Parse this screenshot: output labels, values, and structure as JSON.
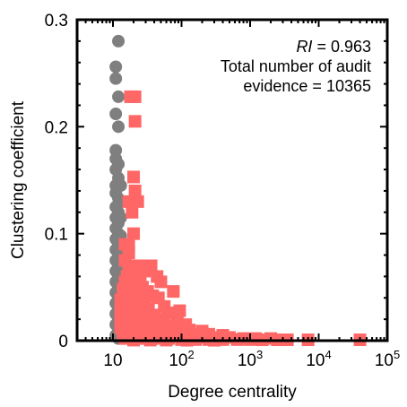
{
  "chart_data": {
    "type": "scatter",
    "title": "",
    "xlabel": "Degree centrality",
    "ylabel": "Clustering coefficient",
    "xscale": "log",
    "xlim": [
      3,
      100000
    ],
    "ylim": [
      0,
      0.3
    ],
    "xticks": [
      {
        "value": 10,
        "base": "10",
        "exp": ""
      },
      {
        "value": 100,
        "base": "10",
        "exp": "2"
      },
      {
        "value": 1000,
        "base": "10",
        "exp": "3"
      },
      {
        "value": 10000,
        "base": "10",
        "exp": "4"
      },
      {
        "value": 100000,
        "base": "10",
        "exp": "5"
      }
    ],
    "yticks": [
      {
        "value": 0,
        "label": "0"
      },
      {
        "value": 0.1,
        "label": "0.1"
      },
      {
        "value": 0.2,
        "label": "0.2"
      },
      {
        "value": 0.3,
        "label": "0.3"
      }
    ],
    "grid": false,
    "annotation": {
      "ri_symbol": "RI",
      "ri_value": " = 0.963",
      "line2": "Total number of audit",
      "line3": "evidence = 10365"
    },
    "series": [
      {
        "marker": "circle",
        "color": "#7f7f7f",
        "points": [
          [
            12,
            0.28
          ],
          [
            11,
            0.256
          ],
          [
            11,
            0.245
          ],
          [
            12,
            0.228
          ],
          [
            11,
            0.212
          ],
          [
            12,
            0.2
          ],
          [
            11,
            0.178
          ],
          [
            11,
            0.17
          ],
          [
            12,
            0.165
          ],
          [
            11,
            0.16
          ],
          [
            12,
            0.152
          ],
          [
            11,
            0.145
          ],
          [
            13,
            0.145
          ],
          [
            11,
            0.138
          ],
          [
            12,
            0.133
          ],
          [
            13,
            0.13
          ],
          [
            11,
            0.125
          ],
          [
            12,
            0.12
          ],
          [
            11,
            0.115
          ],
          [
            13,
            0.115
          ],
          [
            12,
            0.11
          ],
          [
            11,
            0.105
          ],
          [
            12,
            0.1
          ],
          [
            11,
            0.095
          ],
          [
            13,
            0.098
          ],
          [
            12,
            0.09
          ],
          [
            11,
            0.085
          ],
          [
            12,
            0.08
          ],
          [
            11,
            0.075
          ],
          [
            12,
            0.07
          ],
          [
            11,
            0.065
          ],
          [
            12,
            0.06
          ],
          [
            11,
            0.055
          ],
          [
            12,
            0.05
          ],
          [
            11,
            0.045
          ],
          [
            12,
            0.04
          ],
          [
            11,
            0.035
          ],
          [
            12,
            0.03
          ],
          [
            11,
            0.025
          ],
          [
            12,
            0.02
          ],
          [
            11,
            0.015
          ],
          [
            12,
            0.01
          ],
          [
            11,
            0.005
          ],
          [
            12,
            0.002
          ]
        ]
      },
      {
        "marker": "square",
        "color": "#ff6666",
        "points": [
          [
            18,
            0.228
          ],
          [
            21,
            0.228
          ],
          [
            21,
            0.205
          ],
          [
            20,
            0.153
          ],
          [
            21,
            0.14
          ],
          [
            17,
            0.13
          ],
          [
            23,
            0.13
          ],
          [
            19,
            0.12
          ],
          [
            20,
            0.1
          ],
          [
            17,
            0.09
          ],
          [
            15,
            0.09
          ],
          [
            17,
            0.082
          ],
          [
            15,
            0.075
          ],
          [
            20,
            0.07
          ],
          [
            25,
            0.07
          ],
          [
            17,
            0.065
          ],
          [
            21,
            0.065
          ],
          [
            29,
            0.065
          ],
          [
            16,
            0.06
          ],
          [
            19,
            0.058
          ],
          [
            25,
            0.058
          ],
          [
            36,
            0.07
          ],
          [
            15,
            0.055
          ],
          [
            18,
            0.052
          ],
          [
            22,
            0.05
          ],
          [
            27,
            0.05
          ],
          [
            44,
            0.06
          ],
          [
            14,
            0.048
          ],
          [
            17,
            0.046
          ],
          [
            21,
            0.045
          ],
          [
            32,
            0.046
          ],
          [
            50,
            0.055
          ],
          [
            14,
            0.042
          ],
          [
            19,
            0.04
          ],
          [
            25,
            0.04
          ],
          [
            38,
            0.042
          ],
          [
            13,
            0.038
          ],
          [
            16,
            0.036
          ],
          [
            21,
            0.035
          ],
          [
            29,
            0.035
          ],
          [
            46,
            0.04
          ],
          [
            76,
            0.046
          ],
          [
            13,
            0.032
          ],
          [
            15,
            0.03
          ],
          [
            18,
            0.03
          ],
          [
            24,
            0.03
          ],
          [
            33,
            0.03
          ],
          [
            56,
            0.032
          ],
          [
            13,
            0.026
          ],
          [
            16,
            0.025
          ],
          [
            20,
            0.025
          ],
          [
            27,
            0.024
          ],
          [
            40,
            0.024
          ],
          [
            63,
            0.026
          ],
          [
            94,
            0.028
          ],
          [
            13,
            0.021
          ],
          [
            15,
            0.02
          ],
          [
            19,
            0.02
          ],
          [
            26,
            0.019
          ],
          [
            36,
            0.02
          ],
          [
            55,
            0.02
          ],
          [
            87,
            0.02
          ],
          [
            13,
            0.016
          ],
          [
            16,
            0.015
          ],
          [
            22,
            0.015
          ],
          [
            31,
            0.015
          ],
          [
            46,
            0.015
          ],
          [
            72,
            0.014
          ],
          [
            115,
            0.015
          ],
          [
            13,
            0.012
          ],
          [
            17,
            0.011
          ],
          [
            24,
            0.011
          ],
          [
            35,
            0.011
          ],
          [
            52,
            0.011
          ],
          [
            82,
            0.01
          ],
          [
            130,
            0.01
          ],
          [
            200,
            0.009
          ],
          [
            14,
            0.008
          ],
          [
            19,
            0.008
          ],
          [
            27,
            0.008
          ],
          [
            40,
            0.008
          ],
          [
            60,
            0.007
          ],
          [
            95,
            0.007
          ],
          [
            150,
            0.006
          ],
          [
            250,
            0.006
          ],
          [
            400,
            0.005
          ],
          [
            14,
            0.005
          ],
          [
            20,
            0.005
          ],
          [
            30,
            0.005
          ],
          [
            45,
            0.004
          ],
          [
            70,
            0.004
          ],
          [
            110,
            0.004
          ],
          [
            180,
            0.003
          ],
          [
            300,
            0.003
          ],
          [
            500,
            0.003
          ],
          [
            800,
            0.002
          ],
          [
            1200,
            0.002
          ],
          [
            2000,
            0.002
          ],
          [
            15,
            0.002
          ],
          [
            25,
            0.002
          ],
          [
            40,
            0.002
          ],
          [
            65,
            0.002
          ],
          [
            100,
            0.001
          ],
          [
            160,
            0.001
          ],
          [
            250,
            0.001
          ],
          [
            400,
            0.001
          ],
          [
            650,
            0.001
          ],
          [
            1000,
            0.001
          ],
          [
            1500,
            0.0008
          ],
          [
            2500,
            0.0008
          ],
          [
            3500,
            0.0008
          ],
          [
            7000,
            0.0008
          ],
          [
            40000,
            0.0008
          ],
          [
            20,
            0.0005
          ],
          [
            35,
            0.0005
          ],
          [
            60,
            0.0005
          ],
          [
            120,
            0.0004
          ],
          [
            300,
            0.0004
          ]
        ]
      }
    ]
  }
}
